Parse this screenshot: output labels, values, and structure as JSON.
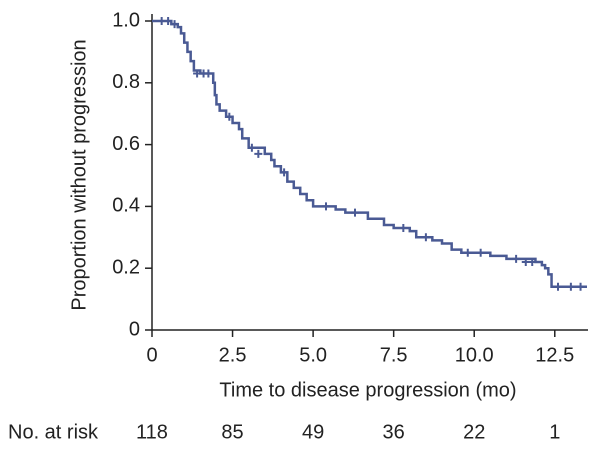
{
  "chart_data": {
    "type": "line",
    "step": true,
    "xlabel": "Time to disease progression (mo)",
    "ylabel": "Proportion without progression",
    "color": "#4a5a94",
    "xlim": [
      0,
      13.5
    ],
    "ylim": [
      0,
      1
    ],
    "xticks": [
      0,
      2.5,
      {
        "value": 5,
        "label": "5.0"
      },
      7.5,
      {
        "value": 10,
        "label": "10.0"
      },
      12.5
    ],
    "yticks": [
      0,
      0.2,
      0.4,
      0.6,
      0.8,
      {
        "value": 1,
        "label": "1.0"
      }
    ],
    "x": [
      0,
      0.6,
      0.8,
      0.9,
      1.0,
      1.1,
      1.2,
      1.3,
      1.5,
      1.9,
      1.95,
      2.0,
      2.1,
      2.3,
      2.5,
      2.7,
      2.8,
      3.0,
      3.5,
      3.7,
      3.8,
      4.0,
      4.2,
      4.4,
      4.6,
      4.8,
      5.0,
      5.7,
      6.0,
      6.7,
      7.2,
      7.5,
      8.0,
      8.2,
      8.7,
      9.0,
      9.3,
      9.6,
      10.5,
      11.0,
      11.9,
      12.1,
      12.2,
      12.3,
      12.4,
      13.5
    ],
    "values": [
      1.0,
      0.99,
      0.98,
      0.96,
      0.93,
      0.9,
      0.87,
      0.84,
      0.83,
      0.8,
      0.76,
      0.73,
      0.71,
      0.69,
      0.67,
      0.65,
      0.62,
      0.59,
      0.57,
      0.55,
      0.53,
      0.51,
      0.48,
      0.46,
      0.44,
      0.42,
      0.4,
      0.39,
      0.38,
      0.36,
      0.34,
      0.33,
      0.32,
      0.3,
      0.29,
      0.28,
      0.26,
      0.25,
      0.24,
      0.23,
      0.22,
      0.21,
      0.2,
      0.18,
      0.14,
      0.14
    ],
    "censored": {
      "x": [
        0.3,
        0.5,
        0.7,
        1.4,
        1.6,
        1.75,
        2.4,
        3.1,
        3.3,
        4.1,
        5.4,
        6.3,
        7.8,
        8.5,
        9.8,
        10.2,
        11.3,
        11.6,
        11.8,
        12.6,
        13.0,
        13.3
      ],
      "values": [
        1.0,
        1.0,
        0.99,
        0.83,
        0.83,
        0.83,
        0.69,
        0.59,
        0.57,
        0.51,
        0.4,
        0.38,
        0.33,
        0.3,
        0.25,
        0.25,
        0.23,
        0.22,
        0.22,
        0.14,
        0.14,
        0.14
      ]
    },
    "risk_table": {
      "label": "No. at risk",
      "values": [
        118,
        85,
        49,
        36,
        22,
        1
      ]
    }
  }
}
